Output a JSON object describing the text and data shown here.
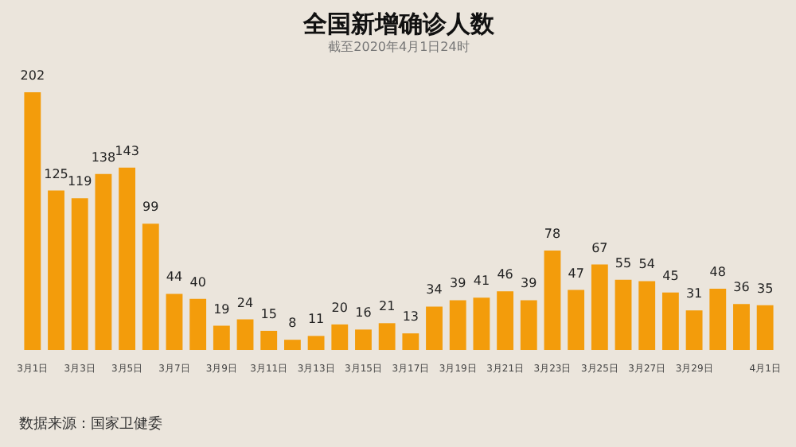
{
  "chart_data": {
    "type": "bar",
    "title": "全国新增确诊人数",
    "subtitle": "截至2020年4月1日24时",
    "categories": [
      "3月1日",
      null,
      "3月3日",
      null,
      "3月5日",
      null,
      "3月7日",
      null,
      "3月9日",
      null,
      "3月11日",
      null,
      "3月13日",
      null,
      "3月15日",
      null,
      "3月17日",
      null,
      "3月19日",
      null,
      "3月21日",
      null,
      "3月23日",
      null,
      "3月25日",
      null,
      "3月27日",
      null,
      "3月29日",
      null,
      null,
      "4月1日"
    ],
    "values": [
      202,
      125,
      119,
      138,
      143,
      99,
      44,
      40,
      19,
      24,
      15,
      8,
      11,
      20,
      16,
      21,
      13,
      34,
      39,
      41,
      46,
      39,
      78,
      47,
      67,
      55,
      54,
      45,
      31,
      48,
      36,
      35
    ],
    "color": "#f39c0b",
    "data_labels": true,
    "annotations": [
      "数据来源：国家卫健委"
    ]
  }
}
